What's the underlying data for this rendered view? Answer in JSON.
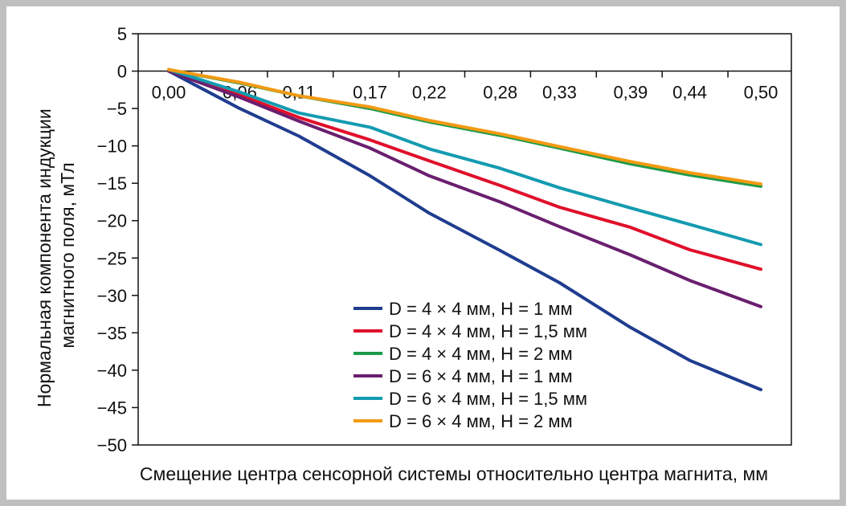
{
  "chart_data": {
    "type": "line",
    "title": "",
    "xlabel": "Смещение центра сенсорной системы относительно центра магнита, мм",
    "ylabel_lines": [
      "Нормальная компонента индукции",
      "магнитного поля, мТл"
    ],
    "x": [
      0.0,
      0.06,
      0.11,
      0.17,
      0.22,
      0.28,
      0.33,
      0.39,
      0.44,
      0.5
    ],
    "x_tick_labels": [
      "0,00",
      "0,06",
      "0,11",
      "0,17",
      "0,22",
      "0,28",
      "0,33",
      "0,39",
      "0,44",
      "0,50"
    ],
    "y_ticks": [
      5,
      0,
      -5,
      -10,
      -15,
      -20,
      -25,
      -30,
      -35,
      -40,
      -45,
      -50
    ],
    "y_tick_labels": [
      "5",
      "0",
      "−5",
      "−10",
      "−15",
      "−20",
      "−25",
      "−30",
      "−35",
      "−40",
      "−45",
      "−50"
    ],
    "ylim": [
      -50,
      5
    ],
    "grid": false,
    "legend_position": "bottom-center",
    "series": [
      {
        "name": "D = 4 × 4 мм, H = 1 мм",
        "color": "#1f3d8f",
        "values": [
          0,
          -5.0,
          -8.7,
          -14.0,
          -19.0,
          -24.0,
          -28.3,
          -34.3,
          -38.7,
          -42.6
        ]
      },
      {
        "name": "D = 4 × 4 мм, H = 1,5 мм",
        "color": "#e0102b",
        "values": [
          0,
          -3.2,
          -6.2,
          -9.2,
          -12.0,
          -15.3,
          -18.2,
          -20.9,
          -23.9,
          -26.5
        ]
      },
      {
        "name": "D = 4 × 4 мм, H = 2 мм",
        "color": "#1c9a4a",
        "values": [
          0.2,
          -1.6,
          -3.3,
          -5.0,
          -6.8,
          -8.6,
          -10.3,
          -12.4,
          -13.9,
          -15.4
        ]
      },
      {
        "name": "D = 6 × 4 мм, H = 1 мм",
        "color": "#6a1f6e",
        "values": [
          0,
          -3.5,
          -6.7,
          -10.3,
          -14.0,
          -17.5,
          -20.8,
          -24.6,
          -28.0,
          -31.5
        ]
      },
      {
        "name": "D = 6 × 4 мм, H = 1,5 мм",
        "color": "#149bb0",
        "values": [
          0.2,
          -2.8,
          -5.6,
          -7.5,
          -10.4,
          -13.0,
          -15.6,
          -18.3,
          -20.5,
          -23.2
        ]
      },
      {
        "name": "D = 6 × 4 мм, H = 2 мм",
        "color": "#f39a12",
        "values": [
          0.2,
          -1.5,
          -3.3,
          -4.8,
          -6.6,
          -8.4,
          -10.1,
          -12.1,
          -13.6,
          -15.1
        ]
      }
    ]
  }
}
